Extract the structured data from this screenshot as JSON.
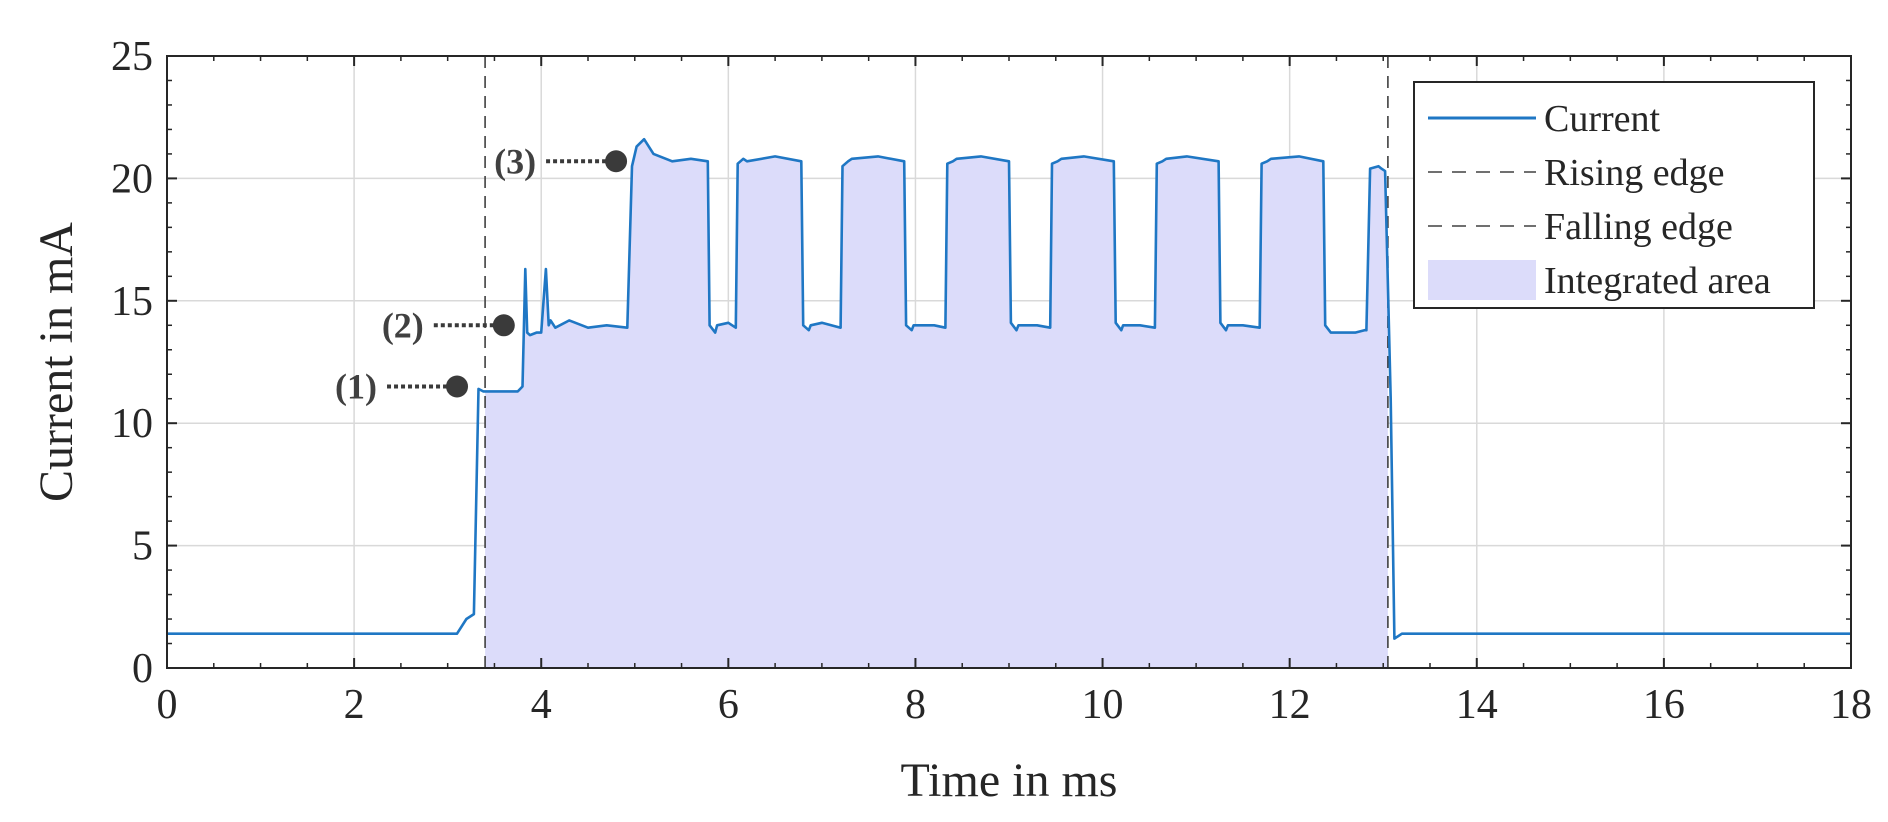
{
  "chart_data": {
    "type": "line",
    "xlabel": "Time in ms",
    "ylabel": "Current in mA",
    "xlim": [
      0,
      18
    ],
    "ylim": [
      0,
      25
    ],
    "x_ticks": [
      0,
      2,
      4,
      6,
      8,
      10,
      12,
      14,
      16,
      18
    ],
    "y_ticks": [
      0,
      5,
      10,
      15,
      20,
      25
    ],
    "grid": true,
    "legend_position": "top-right",
    "legend": [
      "Current",
      "Rising edge",
      "Falling edge",
      "Integrated area"
    ],
    "colors": {
      "current": "#1f77c4",
      "area_fill": "#dcdcfa",
      "edge_lines": "#404040",
      "grid": "#d9d9d9",
      "annotation": "#3a3a3a"
    },
    "series": [
      {
        "name": "Current",
        "x": [
          0,
          3.1,
          3.2,
          3.28,
          3.33,
          3.38,
          3.45,
          3.6,
          3.75,
          3.8,
          3.83,
          3.85,
          3.88,
          3.95,
          4.0,
          4.05,
          4.08,
          4.1,
          4.15,
          4.3,
          4.5,
          4.7,
          4.92,
          4.97,
          5.02,
          5.1,
          5.2,
          5.4,
          5.6,
          5.78,
          5.8,
          5.86,
          5.88,
          6.0,
          6.08,
          6.1,
          6.16,
          6.2,
          6.5,
          6.78,
          6.8,
          6.86,
          6.88,
          7.0,
          7.2,
          7.22,
          7.28,
          7.32,
          7.6,
          7.88,
          7.9,
          7.96,
          7.98,
          8.2,
          8.32,
          8.34,
          8.4,
          8.44,
          8.7,
          9.0,
          9.02,
          9.08,
          9.1,
          9.3,
          9.44,
          9.46,
          9.52,
          9.56,
          9.8,
          10.12,
          10.14,
          10.2,
          10.22,
          10.4,
          10.56,
          10.58,
          10.64,
          10.68,
          10.9,
          11.24,
          11.26,
          11.32,
          11.34,
          11.5,
          11.68,
          11.7,
          11.76,
          11.8,
          12.1,
          12.36,
          12.38,
          12.44,
          12.46,
          12.7,
          12.8,
          12.82,
          12.86,
          12.95,
          12.98,
          13.02,
          13.08,
          13.12,
          13.2,
          14.0,
          16.0,
          18.0
        ],
        "y": [
          1.4,
          1.4,
          2.0,
          2.2,
          11.4,
          11.3,
          11.3,
          11.3,
          11.3,
          11.5,
          16.3,
          13.7,
          13.6,
          13.7,
          13.7,
          16.3,
          14.0,
          14.2,
          13.9,
          14.2,
          13.9,
          14.0,
          13.9,
          20.5,
          21.3,
          21.6,
          21.0,
          20.7,
          20.8,
          20.7,
          14.0,
          13.7,
          14.0,
          14.1,
          13.9,
          20.6,
          20.8,
          20.7,
          20.9,
          20.7,
          14.0,
          13.8,
          14.0,
          14.1,
          13.9,
          20.5,
          20.7,
          20.8,
          20.9,
          20.7,
          14.0,
          13.8,
          14.0,
          14.0,
          13.9,
          20.6,
          20.7,
          20.8,
          20.9,
          20.7,
          14.1,
          13.8,
          14.0,
          14.0,
          13.9,
          20.6,
          20.7,
          20.8,
          20.9,
          20.7,
          14.1,
          13.8,
          14.0,
          14.0,
          13.9,
          20.6,
          20.7,
          20.8,
          20.9,
          20.7,
          14.1,
          13.8,
          14.0,
          14.0,
          13.9,
          20.6,
          20.7,
          20.8,
          20.9,
          20.7,
          14.0,
          13.7,
          13.7,
          13.7,
          13.8,
          13.8,
          20.4,
          20.5,
          20.4,
          20.3,
          11.0,
          1.2,
          1.4,
          1.4,
          1.4,
          1.4
        ]
      }
    ],
    "markers": {
      "rising_edge_x": 3.4,
      "falling_edge_x": 13.05
    },
    "integrated_area": {
      "x_start": 3.4,
      "x_end": 13.05
    },
    "annotations": [
      {
        "label": "(1)",
        "x": 3.1,
        "y": 11.5
      },
      {
        "label": "(2)",
        "x": 3.6,
        "y": 14.0
      },
      {
        "label": "(3)",
        "x": 4.8,
        "y": 20.7
      }
    ]
  }
}
